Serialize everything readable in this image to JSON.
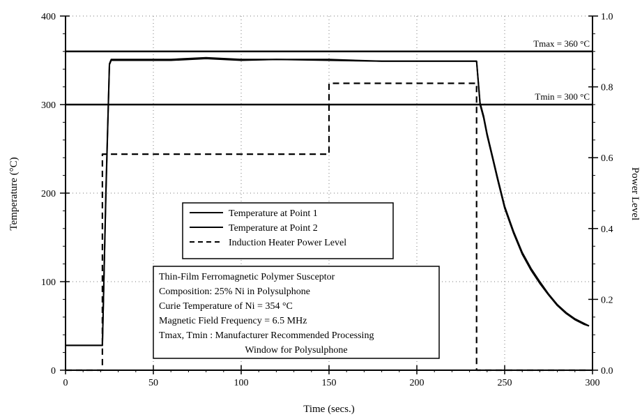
{
  "chart_data": {
    "type": "line",
    "title": "",
    "xlabel": "Time  (secs.)",
    "ylabel": "Temperature  (°C)",
    "y2label": "Power Level",
    "xlim": [
      0,
      300
    ],
    "ylim": [
      0,
      400
    ],
    "y2lim": [
      0.0,
      1.0
    ],
    "grid": true,
    "xticks": [
      "0",
      "50",
      "100",
      "150",
      "200",
      "250",
      "300"
    ],
    "yticks": [
      "0",
      "100",
      "200",
      "300",
      "400"
    ],
    "y2ticks": [
      "0.0",
      "0.2",
      "0.4",
      "0.6",
      "0.8",
      "1.0"
    ],
    "reference_lines": [
      {
        "label": "Tmax = 360 °C",
        "y": 360
      },
      {
        "label": "Tmin = 300 °C",
        "y": 300
      }
    ],
    "series": [
      {
        "name": "Temperature at Point 1",
        "axis": "left",
        "style": "solid",
        "x": [
          0,
          21,
          23,
          25,
          26,
          40,
          60,
          80,
          100,
          120,
          150,
          180,
          210,
          230,
          234,
          236,
          238,
          240,
          243,
          246,
          250,
          255,
          260,
          265,
          270,
          275,
          280,
          285,
          290,
          295,
          298
        ],
        "y": [
          28,
          28,
          200,
          345,
          350,
          350,
          350,
          352,
          350,
          351,
          350,
          349,
          349,
          349,
          349,
          300,
          285,
          265,
          240,
          215,
          183,
          155,
          131,
          113,
          98,
          85,
          73,
          64,
          57,
          52,
          50
        ]
      },
      {
        "name": "Temperature at Point 2",
        "axis": "left",
        "style": "solid",
        "x": [
          0,
          21,
          23,
          25,
          26,
          40,
          60,
          80,
          100,
          120,
          150,
          180,
          210,
          230,
          234,
          236,
          238,
          240,
          243,
          246,
          250,
          255,
          260,
          265,
          270,
          275,
          280,
          285,
          290,
          295,
          298
        ],
        "y": [
          28,
          28,
          205,
          346,
          351,
          351,
          351,
          353,
          351,
          351,
          351,
          349,
          349,
          349,
          349,
          302,
          287,
          267,
          242,
          217,
          185,
          157,
          133,
          115,
          100,
          86,
          74,
          65,
          58,
          53,
          50
        ]
      },
      {
        "name": "Induction Heater Power Level",
        "axis": "right",
        "style": "dashed",
        "x": [
          0,
          21,
          21,
          150,
          150,
          234,
          234,
          298
        ],
        "y": [
          0.0,
          0.0,
          0.61,
          0.61,
          0.81,
          0.81,
          0.0,
          0.0
        ]
      }
    ],
    "legend": {
      "position": "center",
      "entries": [
        {
          "label": "Temperature at Point 1",
          "style": "solid"
        },
        {
          "label": "Temperature at Point 2",
          "style": "solid"
        },
        {
          "label": "Induction Heater Power Level",
          "style": "dashed"
        }
      ]
    },
    "annotation": [
      "Thin-Film Ferromagnetic Polymer Susceptor",
      "Composition: 25% Ni in Polysulphone",
      "Curie Temperature of Ni = 354 °C",
      "Magnetic Field Frequency = 6.5 MHz",
      "Tmax, Tmin : Manufacturer Recommended Processing",
      "Window for Polysulphone"
    ]
  }
}
